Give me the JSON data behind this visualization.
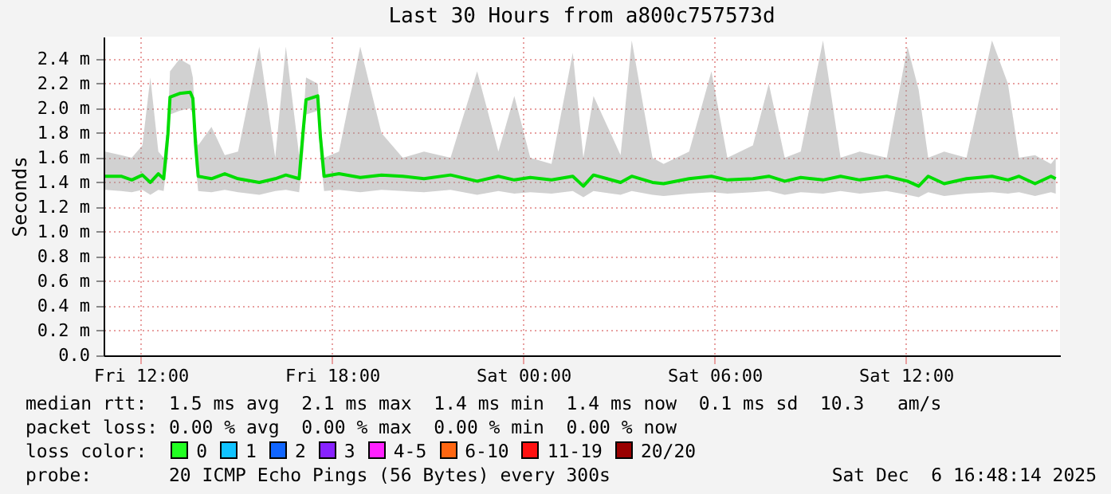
{
  "chart_data": {
    "type": "line",
    "title": "Last 30 Hours from a800c757573d",
    "ylabel": "Seconds",
    "x": [
      "2025-12-05T10:53",
      "2025-12-05T11:23",
      "2025-12-05T11:43",
      "2025-12-05T12:03",
      "2025-12-05T12:18",
      "2025-12-05T12:33",
      "2025-12-05T12:43",
      "2025-12-05T12:51",
      "2025-12-05T12:55",
      "2025-12-05T13:13",
      "2025-12-05T13:33",
      "2025-12-05T13:38",
      "2025-12-05T13:43",
      "2025-12-05T13:48",
      "2025-12-05T14:13",
      "2025-12-05T14:38",
      "2025-12-05T15:03",
      "2025-12-05T15:43",
      "2025-12-05T16:13",
      "2025-12-05T16:33",
      "2025-12-05T16:58",
      "2025-12-05T17:05",
      "2025-12-05T17:11",
      "2025-12-05T17:33",
      "2025-12-05T17:38",
      "2025-12-05T17:45",
      "2025-12-05T18:13",
      "2025-12-05T18:53",
      "2025-12-05T19:33",
      "2025-12-05T20:13",
      "2025-12-05T20:53",
      "2025-12-05T21:43",
      "2025-12-05T22:33",
      "2025-12-05T23:13",
      "2025-12-05T23:43",
      "2025-12-06T00:13",
      "2025-12-06T00:53",
      "2025-12-06T01:33",
      "2025-12-06T01:53",
      "2025-12-06T02:12",
      "2025-12-06T03:03",
      "2025-12-06T03:24",
      "2025-12-06T04:03",
      "2025-12-06T04:24",
      "2025-12-06T05:12",
      "2025-12-06T05:54",
      "2025-12-06T06:24",
      "2025-12-06T07:12",
      "2025-12-06T07:42",
      "2025-12-06T08:12",
      "2025-12-06T08:42",
      "2025-12-06T09:24",
      "2025-12-06T09:57",
      "2025-12-06T10:33",
      "2025-12-06T11:24",
      "2025-12-06T12:03",
      "2025-12-06T12:24",
      "2025-12-06T12:42",
      "2025-12-06T13:12",
      "2025-12-06T13:54",
      "2025-12-06T14:42",
      "2025-12-06T15:12",
      "2025-12-06T15:33",
      "2025-12-06T16:03",
      "2025-12-06T16:33",
      "2025-12-06T16:42"
    ],
    "series": [
      {
        "color": "#00dd00",
        "values": [
          1.45,
          1.45,
          1.42,
          1.46,
          1.4,
          1.47,
          1.43,
          1.79,
          2.09,
          2.12,
          2.13,
          2.08,
          1.71,
          1.45,
          1.43,
          1.47,
          1.43,
          1.4,
          1.43,
          1.46,
          1.43,
          1.79,
          2.07,
          2.1,
          1.77,
          1.45,
          1.47,
          1.44,
          1.46,
          1.45,
          1.43,
          1.46,
          1.41,
          1.45,
          1.42,
          1.44,
          1.42,
          1.45,
          1.37,
          1.46,
          1.4,
          1.45,
          1.4,
          1.39,
          1.43,
          1.45,
          1.42,
          1.43,
          1.45,
          1.41,
          1.44,
          1.42,
          1.45,
          1.42,
          1.45,
          1.41,
          1.37,
          1.45,
          1.39,
          1.43,
          1.45,
          1.42,
          1.45,
          1.39,
          1.45,
          1.43
        ],
        "lower": [
          1.34,
          1.33,
          1.32,
          1.34,
          1.3,
          1.34,
          1.33,
          1.6,
          1.95,
          1.98,
          2.0,
          1.95,
          1.55,
          1.33,
          1.32,
          1.34,
          1.32,
          1.3,
          1.33,
          1.34,
          1.32,
          1.6,
          1.95,
          1.98,
          1.6,
          1.33,
          1.34,
          1.32,
          1.34,
          1.33,
          1.32,
          1.34,
          1.3,
          1.33,
          1.31,
          1.32,
          1.31,
          1.33,
          1.28,
          1.33,
          1.3,
          1.33,
          1.3,
          1.29,
          1.31,
          1.32,
          1.31,
          1.32,
          1.33,
          1.3,
          1.32,
          1.31,
          1.33,
          1.31,
          1.33,
          1.3,
          1.28,
          1.32,
          1.29,
          1.31,
          1.32,
          1.31,
          1.32,
          1.29,
          1.32,
          1.31
        ],
        "upper": [
          1.65,
          1.62,
          1.6,
          1.7,
          2.25,
          1.65,
          1.6,
          1.9,
          2.3,
          2.4,
          2.35,
          2.25,
          1.85,
          1.7,
          1.85,
          1.62,
          1.65,
          2.5,
          1.6,
          2.5,
          1.62,
          1.85,
          2.25,
          2.2,
          1.9,
          1.6,
          1.65,
          2.5,
          1.8,
          1.6,
          1.65,
          1.6,
          2.3,
          1.65,
          2.1,
          1.6,
          1.55,
          2.45,
          1.6,
          2.1,
          1.62,
          2.55,
          1.6,
          1.55,
          1.65,
          2.3,
          1.6,
          1.7,
          2.2,
          1.6,
          1.65,
          2.55,
          1.6,
          1.65,
          1.6,
          2.5,
          2.15,
          1.6,
          1.65,
          1.6,
          2.55,
          2.2,
          1.6,
          1.62,
          1.55,
          1.6
        ]
      }
    ],
    "xlim": [
      "2025-12-05T10:50",
      "2025-12-06T16:50"
    ],
    "xticks": [
      {
        "value": "2025-12-05T12:00",
        "label": "Fri 12:00"
      },
      {
        "value": "2025-12-05T18:00",
        "label": "Fri 18:00"
      },
      {
        "value": "2025-12-06T00:00",
        "label": "Sat 00:00"
      },
      {
        "value": "2025-12-06T06:00",
        "label": "Sat 06:00"
      },
      {
        "value": "2025-12-06T12:00",
        "label": "Sat 12:00"
      }
    ],
    "ylim": [
      0,
      2.58
    ],
    "yticks": [
      {
        "value": 0,
        "label": "0.0"
      },
      {
        "value": 0.2,
        "label": "0.2 m"
      },
      {
        "value": 0.4,
        "label": "0.4 m"
      },
      {
        "value": 0.6,
        "label": "0.6 m"
      },
      {
        "value": 0.8,
        "label": "0.8 m"
      },
      {
        "value": 1.0,
        "label": "1.0 m"
      },
      {
        "value": 1.2,
        "label": "1.2 m"
      },
      {
        "value": 1.4,
        "label": "1.4 m"
      },
      {
        "value": 1.6,
        "label": "1.6 m"
      },
      {
        "value": 1.8,
        "label": "1.8 m"
      },
      {
        "value": 2.0,
        "label": "2.0 m"
      },
      {
        "value": 2.2,
        "label": "2.2 m"
      },
      {
        "value": 2.4,
        "label": "2.4 m"
      }
    ],
    "grid": true,
    "marker": "none",
    "line_style": "solid",
    "annotations": [
      "median rtt:  1.5 ms avg  2.1 ms max  1.4 ms min  1.4 ms now  0.1 ms sd  10.3   am/s",
      "packet loss: 0.00 % avg  0.00 % max  0.00 % min  0.00 % now",
      "loss color:",
      "0",
      "1",
      "2",
      "3",
      "4-5",
      "6-10",
      "11-19",
      "20/20",
      "probe:       20 ICMP Echo Pings (56 Bytes) every 300s",
      "Sat Dec  6 16:48:14 2025"
    ]
  }
}
